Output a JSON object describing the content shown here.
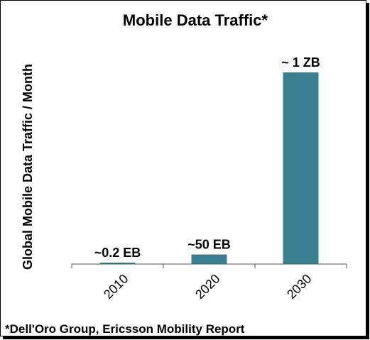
{
  "chart_data": {
    "type": "bar",
    "title": "Mobile Data Traffic*",
    "ylabel": "Global Mobile Data Traffic / Month",
    "xlabel": "",
    "categories": [
      "2010",
      "2020",
      "2030"
    ],
    "values": [
      0.2,
      50,
      1000
    ],
    "value_unit": "EB",
    "data_labels": [
      "~0.2 EB",
      "~50 EB",
      "~ 1 ZB"
    ],
    "ylim": [
      0,
      1000
    ],
    "grid": false,
    "legend": "none",
    "bar_color": "#3a7f91",
    "source_note": "*Dell'Oro Group, Ericsson Mobility Report"
  }
}
